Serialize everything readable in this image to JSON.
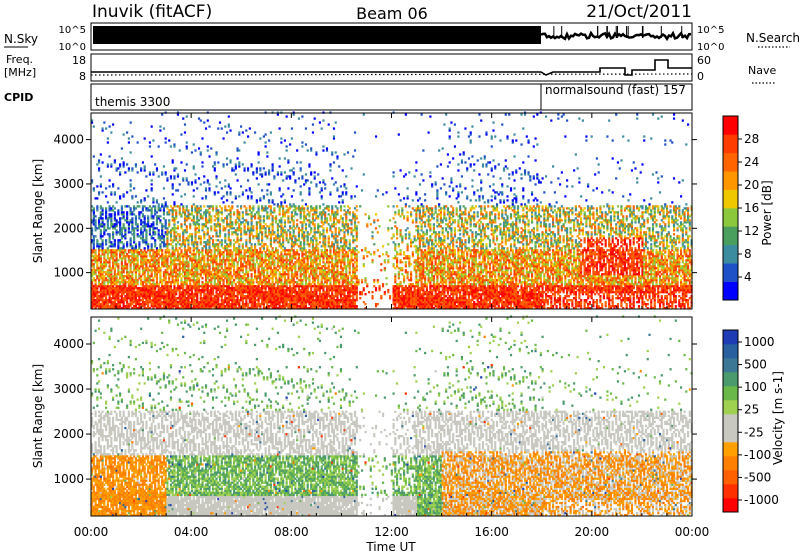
{
  "header": {
    "station": "Inuvik (fitACF)",
    "beam": "Beam 06",
    "date": "21/Oct/2011"
  },
  "panels": {
    "nsky": {
      "label": "N.Sky",
      "right_label": "N.Search",
      "ticks_left": [
        "10^5",
        "10^0"
      ],
      "ticks_right": [
        "10^5",
        "10^0"
      ]
    },
    "freq": {
      "label_line1": "Freq.",
      "label_line2": "[MHz]",
      "ticks_left": [
        "18",
        "8"
      ],
      "right_label": "Nave",
      "ticks_right": [
        "60",
        "0"
      ]
    },
    "cpid": {
      "label": "CPID",
      "modes": [
        {
          "text": "themis 3300"
        },
        {
          "text": "normalsound (fast) 157"
        }
      ]
    }
  },
  "colors": {
    "power_scale": [
      "#0000ff",
      "#1e50c8",
      "#3c8ca0",
      "#4a9e5e",
      "#8cc83c",
      "#f0c800",
      "#ff9600",
      "#ff6400",
      "#ff3c00",
      "#ff0000"
    ],
    "velocity_scale": [
      "#1e3cb4",
      "#2860a0",
      "#3c7896",
      "#4a9a6e",
      "#6ab84a",
      "#a0d050",
      "#c8c8c0",
      "#c8c8c0",
      "#ffa000",
      "#ff8000",
      "#ff6000",
      "#ff3000",
      "#ff0000"
    ]
  },
  "chart_data": [
    {
      "type": "heatmap",
      "name": "power",
      "xlabel": "",
      "ylabel": "Slant Range [km]",
      "xlim_hours": [
        0,
        24
      ],
      "ylim": [
        180,
        4600
      ],
      "yticks": [
        1000,
        2000,
        3000,
        4000
      ],
      "colorbar": {
        "label": "Power [dB]",
        "range": [
          0,
          32
        ],
        "ticks": [
          4,
          8,
          12,
          16,
          20,
          24,
          28
        ]
      }
    },
    {
      "type": "heatmap",
      "name": "velocity",
      "xlabel": "Time UT",
      "ylabel": "Slant Range [km]",
      "xlim_hours": [
        0,
        24
      ],
      "xticks": [
        "00:00",
        "04:00",
        "08:00",
        "12:00",
        "16:00",
        "20:00",
        "00:00"
      ],
      "ylim": [
        180,
        4600
      ],
      "yticks": [
        1000,
        2000,
        3000,
        4000
      ],
      "colorbar": {
        "label": "Velocity [m s-1]",
        "ticks": [
          1000,
          500,
          100,
          25,
          -25,
          -100,
          -500,
          -1000
        ]
      }
    }
  ]
}
